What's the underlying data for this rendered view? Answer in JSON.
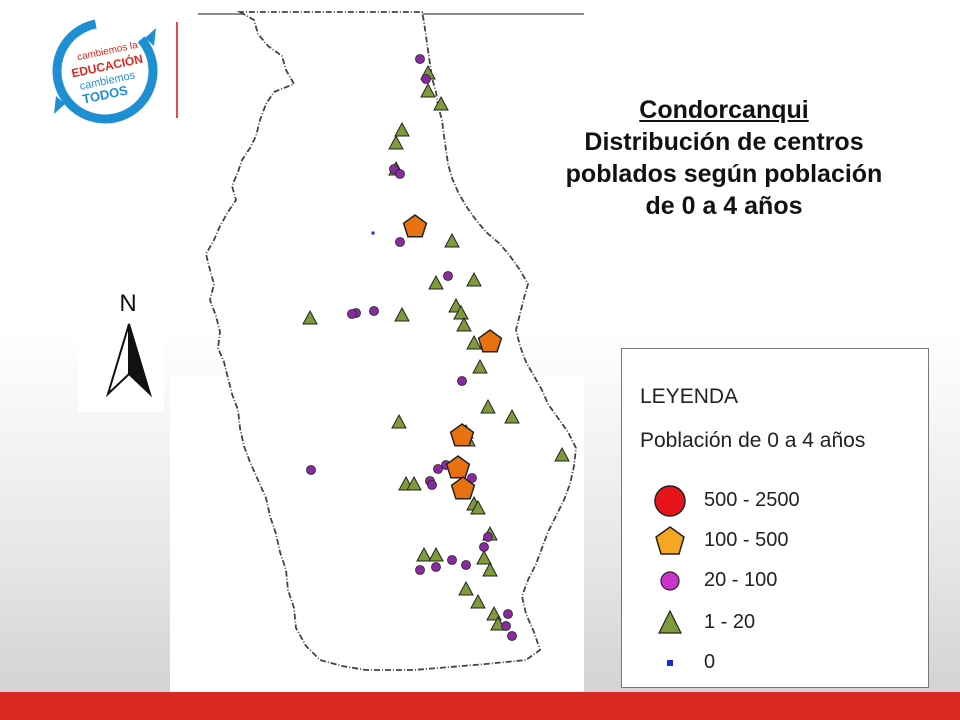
{
  "logo": {
    "line1": "cambiemos la",
    "line2": "EDUCACIÓN",
    "line3": "cambiemos",
    "line4": "TODOS"
  },
  "title": {
    "line1": "Condorcanqui",
    "line2": "Distribución de centros",
    "line3": "poblados según población",
    "line4": "de 0 a 4 años"
  },
  "north": {
    "letter": "N"
  },
  "legend": {
    "heading": "LEYENDA",
    "subheading": "Población de 0 a 4 años",
    "items": [
      {
        "label": "500 - 2500",
        "symbol": "circle-large",
        "color": "#e8141b"
      },
      {
        "label": "100 - 500",
        "symbol": "pentagon",
        "color": "#f5a623"
      },
      {
        "label": "20 - 100",
        "symbol": "circle",
        "color": "#cc33cc"
      },
      {
        "label": "1 - 20",
        "symbol": "triangle",
        "color": "#7e9a3a"
      },
      {
        "label": "0",
        "symbol": "square",
        "color": "#1a2bd8"
      }
    ]
  },
  "colors": {
    "brand_blue": "#1f8fd3",
    "brand_red": "#d82a21",
    "pentagon_map": "#e8720f",
    "circle_map": "#8a2aa0",
    "triangle_map": "#7e9a3a",
    "square_map": "#1a2bd8"
  }
}
